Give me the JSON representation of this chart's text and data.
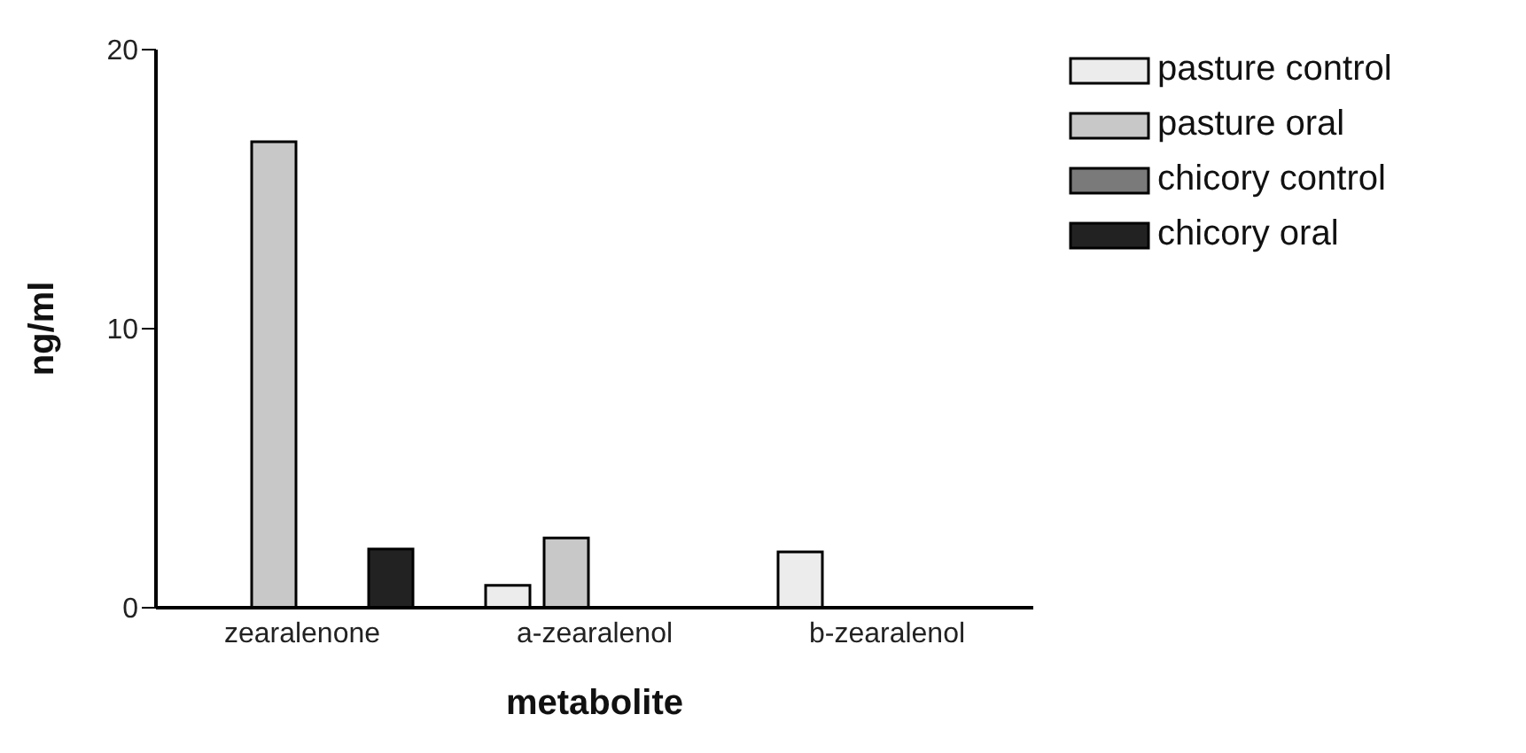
{
  "chart_data": {
    "type": "bar",
    "xlabel": "metabolite",
    "ylabel": "ng/ml",
    "categories": [
      "zearalenone",
      "a-zearalenol",
      "b-zearalenol"
    ],
    "series": [
      {
        "name": "pasture control",
        "color": "#ececec",
        "values": [
          0,
          0.8,
          2.0
        ]
      },
      {
        "name": "pasture oral",
        "color": "#c8c8c8",
        "values": [
          16.7,
          2.5,
          0
        ]
      },
      {
        "name": "chicory control",
        "color": "#7a7a7a",
        "values": [
          0,
          0,
          0
        ]
      },
      {
        "name": "chicory oral",
        "color": "#222222",
        "values": [
          2.1,
          0,
          0
        ]
      }
    ],
    "ylim": [
      0,
      20
    ],
    "yticks": [
      0,
      10,
      20
    ],
    "grid": false,
    "legend": "top right"
  }
}
